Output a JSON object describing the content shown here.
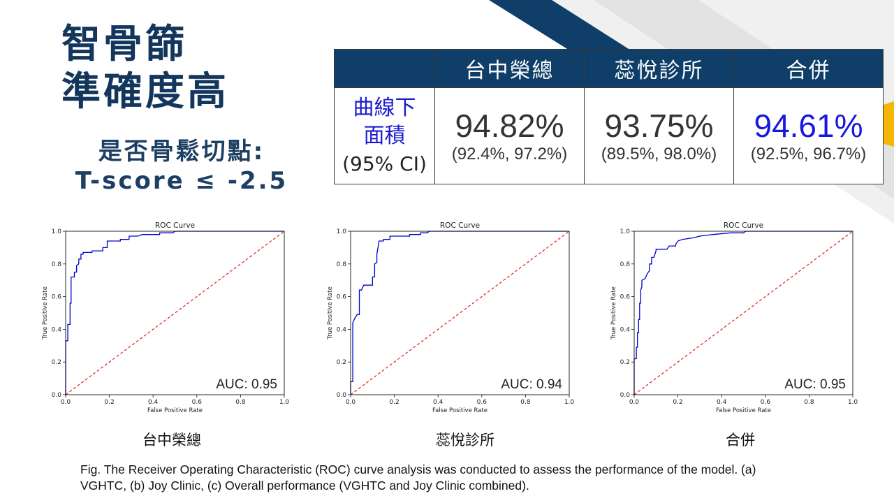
{
  "slide": {
    "title_lines": [
      "智骨篩",
      "準確度高"
    ],
    "cutoff_lines": [
      "是否骨鬆切點:",
      "T-score ≤ -2.5"
    ],
    "figure_caption_lines": [
      "Fig. The Receiver Operating Characteristic (ROC) curve analysis was conducted to assess the performance of the model. (a)",
      "VGHTC, (b) Joy Clinic, (c) Overall performance (VGHTC and Joy Clinic combined)."
    ],
    "colors": {
      "title": "#13365c",
      "header_bg": "#0f3f68",
      "highlight": "#1717e0",
      "accent_yellow": "#f2b705"
    }
  },
  "table": {
    "headers": [
      "",
      "台中榮總",
      "蕊悅診所",
      "合併"
    ],
    "row_label_lines": [
      "曲線下",
      "面積"
    ],
    "row_label_ci": "(95% CI)",
    "cells": [
      {
        "auc": "94.82%",
        "ci": "(92.4%, 97.2%)",
        "highlight": false
      },
      {
        "auc": "93.75%",
        "ci": "(89.5%, 98.0%)",
        "highlight": false
      },
      {
        "auc": "94.61%",
        "ci": "(92.5%, 96.7%)",
        "highlight": true
      }
    ]
  },
  "chart_data": [
    {
      "type": "line",
      "title": "ROC Curve",
      "xlabel": "False Positive Rate",
      "ylabel": "True Positive Rate",
      "xlim": [
        0,
        1
      ],
      "ylim": [
        0,
        1
      ],
      "xticks": [
        "0.0",
        "0.2",
        "0.4",
        "0.6",
        "0.8",
        "1.0"
      ],
      "yticks": [
        "0.0",
        "0.2",
        "0.4",
        "0.6",
        "0.8",
        "1.0"
      ],
      "annotation": "AUC: 0.95",
      "caption": "台中榮總",
      "roc_color": "#0000cc",
      "diag_color": "#e41a1c",
      "roc": [
        [
          0,
          0
        ],
        [
          0,
          0.33
        ],
        [
          0.01,
          0.33
        ],
        [
          0.01,
          0.43
        ],
        [
          0.02,
          0.43
        ],
        [
          0.02,
          0.56
        ],
        [
          0.025,
          0.56
        ],
        [
          0.025,
          0.72
        ],
        [
          0.04,
          0.72
        ],
        [
          0.04,
          0.75
        ],
        [
          0.05,
          0.75
        ],
        [
          0.05,
          0.79
        ],
        [
          0.06,
          0.8
        ],
        [
          0.06,
          0.83
        ],
        [
          0.07,
          0.83
        ],
        [
          0.07,
          0.86
        ],
        [
          0.08,
          0.86
        ],
        [
          0.08,
          0.87
        ],
        [
          0.12,
          0.87
        ],
        [
          0.12,
          0.88
        ],
        [
          0.17,
          0.88
        ],
        [
          0.17,
          0.9
        ],
        [
          0.19,
          0.9
        ],
        [
          0.19,
          0.94
        ],
        [
          0.25,
          0.94
        ],
        [
          0.25,
          0.95
        ],
        [
          0.29,
          0.95
        ],
        [
          0.29,
          0.97
        ],
        [
          0.33,
          0.97
        ],
        [
          0.35,
          0.98
        ],
        [
          0.43,
          0.98
        ],
        [
          0.43,
          0.99
        ],
        [
          0.49,
          0.99
        ],
        [
          0.5,
          1.0
        ],
        [
          1,
          1.0
        ]
      ]
    },
    {
      "type": "line",
      "title": "ROC Curve",
      "xlabel": "False Positive Rate",
      "ylabel": "True Positive Rate",
      "xlim": [
        0,
        1
      ],
      "ylim": [
        0,
        1
      ],
      "xticks": [
        "0.0",
        "0.2",
        "0.4",
        "0.6",
        "0.8",
        "1.0"
      ],
      "yticks": [
        "0.0",
        "0.2",
        "0.4",
        "0.6",
        "0.8",
        "1.0"
      ],
      "annotation": "AUC: 0.94",
      "caption": "蕊悅診所",
      "roc_color": "#0000cc",
      "diag_color": "#e41a1c",
      "roc": [
        [
          0,
          0
        ],
        [
          0,
          0.08
        ],
        [
          0.01,
          0.08
        ],
        [
          0.01,
          0.44
        ],
        [
          0.02,
          0.47
        ],
        [
          0.03,
          0.49
        ],
        [
          0.04,
          0.49
        ],
        [
          0.04,
          0.64
        ],
        [
          0.05,
          0.64
        ],
        [
          0.06,
          0.67
        ],
        [
          0.1,
          0.67
        ],
        [
          0.1,
          0.72
        ],
        [
          0.11,
          0.72
        ],
        [
          0.11,
          0.8
        ],
        [
          0.12,
          0.81
        ],
        [
          0.12,
          0.86
        ],
        [
          0.13,
          0.94
        ],
        [
          0.15,
          0.94
        ],
        [
          0.15,
          0.95
        ],
        [
          0.18,
          0.95
        ],
        [
          0.18,
          0.97
        ],
        [
          0.27,
          0.97
        ],
        [
          0.27,
          0.98
        ],
        [
          0.32,
          0.98
        ],
        [
          0.32,
          0.99
        ],
        [
          0.35,
          0.99
        ],
        [
          0.36,
          1.0
        ],
        [
          1,
          1.0
        ]
      ]
    },
    {
      "type": "line",
      "title": "ROC Curve",
      "xlabel": "False Positive Rate",
      "ylabel": "True Positive Rate",
      "xlim": [
        0,
        1
      ],
      "ylim": [
        0,
        1
      ],
      "xticks": [
        "0.0",
        "0.2",
        "0.4",
        "0.6",
        "0.8",
        "1.0"
      ],
      "yticks": [
        "0.0",
        "0.2",
        "0.4",
        "0.6",
        "0.8",
        "1.0"
      ],
      "annotation": "AUC: 0.95",
      "caption": "合併",
      "roc_color": "#0000cc",
      "diag_color": "#e41a1c",
      "roc": [
        [
          0,
          0
        ],
        [
          0,
          0.22
        ],
        [
          0.01,
          0.22
        ],
        [
          0.01,
          0.29
        ],
        [
          0.015,
          0.29
        ],
        [
          0.015,
          0.38
        ],
        [
          0.02,
          0.38
        ],
        [
          0.02,
          0.46
        ],
        [
          0.025,
          0.46
        ],
        [
          0.025,
          0.56
        ],
        [
          0.03,
          0.56
        ],
        [
          0.03,
          0.64
        ],
        [
          0.035,
          0.66
        ],
        [
          0.035,
          0.7
        ],
        [
          0.05,
          0.71
        ],
        [
          0.06,
          0.74
        ],
        [
          0.07,
          0.76
        ],
        [
          0.07,
          0.8
        ],
        [
          0.08,
          0.8
        ],
        [
          0.08,
          0.84
        ],
        [
          0.09,
          0.84
        ],
        [
          0.1,
          0.88
        ],
        [
          0.1,
          0.89
        ],
        [
          0.15,
          0.89
        ],
        [
          0.16,
          0.91
        ],
        [
          0.19,
          0.91
        ],
        [
          0.19,
          0.92
        ],
        [
          0.2,
          0.94
        ],
        [
          0.22,
          0.95
        ],
        [
          0.27,
          0.96
        ],
        [
          0.3,
          0.97
        ],
        [
          0.36,
          0.98
        ],
        [
          0.44,
          0.99
        ],
        [
          0.5,
          0.99
        ],
        [
          0.51,
          1.0
        ],
        [
          1,
          1.0
        ]
      ]
    }
  ]
}
